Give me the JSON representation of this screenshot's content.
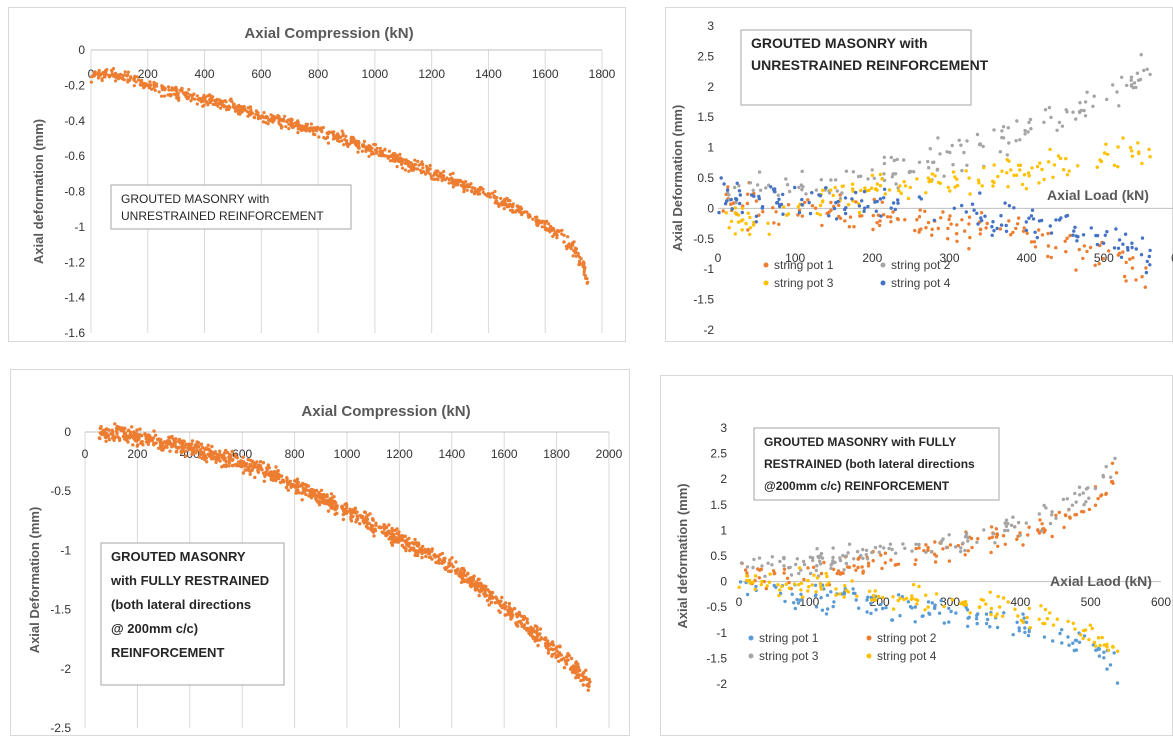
{
  "colors": {
    "orange": "#ed7d31",
    "gray": "#a5a5a5",
    "yellow": "#ffc000",
    "blue": "#4472c4",
    "light_blue": "#5b9bd5"
  },
  "chart_data": [
    {
      "type": "scatter",
      "xlabel": "Axial Compression (kN)",
      "ylabel": "Axial deformation (mm)",
      "xlim": [
        0,
        1800
      ],
      "ylim": [
        -1.6,
        0
      ],
      "xticks": [
        "0",
        "200",
        "400",
        "600",
        "800",
        "1000",
        "1200",
        "1400",
        "1600",
        "1800"
      ],
      "yticks": [
        "0",
        "-0.2",
        "-0.4",
        "-0.6",
        "-0.8",
        "-1",
        "-1.2",
        "-1.4",
        "-1.6"
      ],
      "annotation": [
        "GROUTED MASONRY with",
        "UNRESTRAINED REINFORCEMENT"
      ],
      "grid": "vertical",
      "series": [
        {
          "color": "#ed7d31",
          "points": [
            [
              0,
              -0.15
            ],
            [
              50,
              -0.13
            ],
            [
              100,
              -0.15
            ],
            [
              150,
              -0.17
            ],
            [
              200,
              -0.2
            ],
            [
              300,
              -0.24
            ],
            [
              400,
              -0.28
            ],
            [
              500,
              -0.32
            ],
            [
              600,
              -0.37
            ],
            [
              700,
              -0.41
            ],
            [
              800,
              -0.46
            ],
            [
              900,
              -0.51
            ],
            [
              1000,
              -0.57
            ],
            [
              1100,
              -0.63
            ],
            [
              1200,
              -0.69
            ],
            [
              1300,
              -0.75
            ],
            [
              1400,
              -0.82
            ],
            [
              1500,
              -0.9
            ],
            [
              1600,
              -0.99
            ],
            [
              1650,
              -1.05
            ],
            [
              1700,
              -1.12
            ],
            [
              1720,
              -1.18
            ],
            [
              1740,
              -1.25
            ],
            [
              1750,
              -1.32
            ]
          ]
        }
      ]
    },
    {
      "type": "scatter",
      "xlabel": "Axial Load (kN)",
      "ylabel": "Axial Deformation (mm)",
      "xlim": [
        0,
        600
      ],
      "ylim": [
        -2,
        3
      ],
      "xticks": [
        "0",
        "100",
        "200",
        "300",
        "400",
        "500",
        "600"
      ],
      "yticks": [
        "3",
        "2.5",
        "2",
        "1.5",
        "1",
        "0.5",
        "0",
        "-0.5",
        "-1",
        "-1.5",
        "-2"
      ],
      "annotation": [
        "GROUTED MASONRY with",
        "UNRESTRAINED REINFORCEMENT"
      ],
      "legend": "bottom-left",
      "series": [
        {
          "name": "string pot 1",
          "color": "#ed7d31",
          "points": [
            [
              0,
              0.05
            ],
            [
              100,
              -0.02
            ],
            [
              200,
              -0.12
            ],
            [
              300,
              -0.28
            ],
            [
              400,
              -0.45
            ],
            [
              450,
              -0.6
            ],
            [
              500,
              -0.82
            ],
            [
              530,
              -1.0
            ],
            [
              550,
              -1.15
            ],
            [
              560,
              -1.3
            ]
          ]
        },
        {
          "name": "string pot 2",
          "color": "#a5a5a5",
          "points": [
            [
              0,
              0.25
            ],
            [
              100,
              0.35
            ],
            [
              200,
              0.55
            ],
            [
              300,
              0.85
            ],
            [
              350,
              1.0
            ],
            [
              400,
              1.25
            ],
            [
              450,
              1.55
            ],
            [
              500,
              1.85
            ],
            [
              530,
              2.05
            ],
            [
              560,
              2.35
            ]
          ]
        },
        {
          "name": "string pot 3",
          "color": "#ffc000",
          "points": [
            [
              0,
              -0.1
            ],
            [
              50,
              -0.3
            ],
            [
              100,
              0.0
            ],
            [
              200,
              0.3
            ],
            [
              300,
              0.45
            ],
            [
              400,
              0.6
            ],
            [
              450,
              0.7
            ],
            [
              500,
              0.85
            ],
            [
              560,
              1.0
            ]
          ]
        },
        {
          "name": "string pot 4",
          "color": "#4472c4",
          "points": [
            [
              0,
              0.15
            ],
            [
              100,
              0.08
            ],
            [
              200,
              0.02
            ],
            [
              300,
              -0.05
            ],
            [
              400,
              -0.2
            ],
            [
              450,
              -0.35
            ],
            [
              500,
              -0.5
            ],
            [
              540,
              -0.65
            ],
            [
              560,
              -0.85
            ]
          ]
        }
      ]
    },
    {
      "type": "scatter",
      "xlabel": "Axial Compression (kN)",
      "ylabel": "Axial Deformation (mm)",
      "xlim": [
        0,
        2000
      ],
      "ylim": [
        -2.5,
        0
      ],
      "xticks": [
        "0",
        "200",
        "400",
        "600",
        "800",
        "1000",
        "1200",
        "1400",
        "1600",
        "1800",
        "2000"
      ],
      "yticks": [
        "0",
        "-0.5",
        "-1",
        "-1.5",
        "-2",
        "-2.5"
      ],
      "annotation": [
        "GROUTED MASONRY",
        "with FULLY RESTRAINED",
        "(both lateral directions",
        "@ 200mm c/c)",
        "REINFORCEMENT"
      ],
      "grid": "vertical",
      "series": [
        {
          "color": "#ed7d31",
          "points": [
            [
              50,
              0
            ],
            [
              100,
              -0.02
            ],
            [
              200,
              -0.04
            ],
            [
              300,
              -0.08
            ],
            [
              400,
              -0.13
            ],
            [
              500,
              -0.2
            ],
            [
              600,
              -0.27
            ],
            [
              700,
              -0.35
            ],
            [
              800,
              -0.45
            ],
            [
              900,
              -0.56
            ],
            [
              1000,
              -0.67
            ],
            [
              1100,
              -0.78
            ],
            [
              1200,
              -0.9
            ],
            [
              1300,
              -1.02
            ],
            [
              1400,
              -1.14
            ],
            [
              1500,
              -1.3
            ],
            [
              1600,
              -1.47
            ],
            [
              1700,
              -1.67
            ],
            [
              1800,
              -1.86
            ],
            [
              1900,
              -2.05
            ],
            [
              1930,
              -2.15
            ]
          ]
        }
      ]
    },
    {
      "type": "scatter",
      "xlabel": "Axial Laod (kN)",
      "ylabel": "Axial deformation (mm)",
      "xlim": [
        0,
        600
      ],
      "ylim": [
        -2,
        3
      ],
      "xticks": [
        "0",
        "100",
        "200",
        "300",
        "400",
        "500",
        "600"
      ],
      "yticks": [
        "3",
        "2.5",
        "2",
        "1.5",
        "1",
        "0.5",
        "0",
        "-0.5",
        "-1",
        "-1.5",
        "-2"
      ],
      "annotation": [
        "GROUTED MASONRY with FULLY",
        "RESTRAINED (both lateral directions",
        "@200mm c/c) REINFORCEMENT"
      ],
      "legend": "bottom-left",
      "series": [
        {
          "name": "string pot 1",
          "color": "#5b9bd5",
          "points": [
            [
              0,
              -0.05
            ],
            [
              100,
              -0.3
            ],
            [
              200,
              -0.45
            ],
            [
              300,
              -0.62
            ],
            [
              400,
              -0.85
            ],
            [
              450,
              -1.0
            ],
            [
              500,
              -1.25
            ],
            [
              530,
              -1.5
            ],
            [
              540,
              -1.75
            ]
          ]
        },
        {
          "name": "string pot 2",
          "color": "#ed7d31",
          "points": [
            [
              0,
              0.1
            ],
            [
              100,
              0.2
            ],
            [
              200,
              0.4
            ],
            [
              300,
              0.65
            ],
            [
              400,
              0.95
            ],
            [
              450,
              1.2
            ],
            [
              500,
              1.55
            ],
            [
              520,
              1.8
            ],
            [
              540,
              2.3
            ]
          ]
        },
        {
          "name": "string pot 3",
          "color": "#a5a5a5",
          "points": [
            [
              0,
              0.35
            ],
            [
              100,
              0.35
            ],
            [
              200,
              0.55
            ],
            [
              300,
              0.75
            ],
            [
              400,
              1.1
            ],
            [
              450,
              1.35
            ],
            [
              500,
              1.75
            ],
            [
              530,
              2.2
            ],
            [
              540,
              2.6
            ]
          ]
        },
        {
          "name": "string pot 4",
          "color": "#ffc000",
          "points": [
            [
              0,
              0.05
            ],
            [
              100,
              -0.1
            ],
            [
              200,
              -0.25
            ],
            [
              300,
              -0.4
            ],
            [
              400,
              -0.6
            ],
            [
              450,
              -0.8
            ],
            [
              500,
              -1.05
            ],
            [
              540,
              -1.35
            ]
          ]
        }
      ]
    }
  ]
}
